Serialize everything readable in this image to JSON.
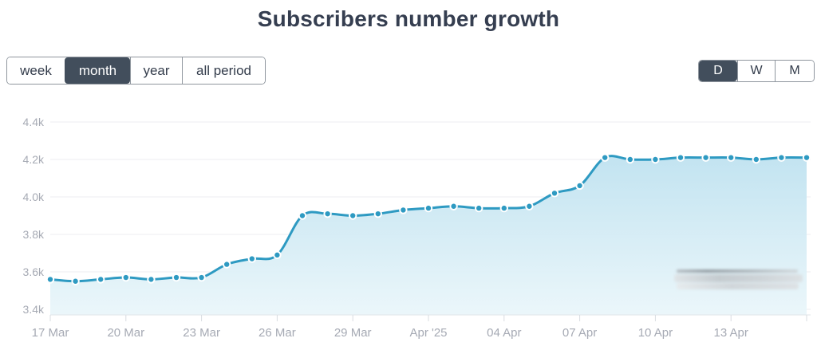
{
  "title": "Subscribers number growth",
  "period_tabs": {
    "items": [
      {
        "label": "week",
        "active": false
      },
      {
        "label": "month",
        "active": true
      },
      {
        "label": "year",
        "active": false
      },
      {
        "label": "all period",
        "active": false
      }
    ]
  },
  "granularity_tabs": {
    "items": [
      {
        "label": "D",
        "active": true
      },
      {
        "label": "W",
        "active": false
      },
      {
        "label": "M",
        "active": false
      }
    ]
  },
  "watermark": {
    "description": "blurred illegible text"
  },
  "colors": {
    "title_text": "#353e50",
    "tab_text": "#333c4b",
    "tab_active_bg": "#424e5c",
    "tab_active_text": "#ffffff",
    "tab_border": "#8f969e",
    "line": "#2e9ac2",
    "dot_fill": "#2e9ac2",
    "dot_ring": "#ffffff",
    "area_top": "#bfe2f0",
    "area_bottom": "#eaf6fa",
    "gridline": "#ededf1",
    "axis_line": "#e2e5e9",
    "tick_mark": "#d8dce1",
    "axis_label": "#a6aab4"
  },
  "chart_data": {
    "type": "area",
    "title": "Subscribers number growth",
    "x": [
      "17 Mar",
      "18 Mar",
      "19 Mar",
      "20 Mar",
      "21 Mar",
      "22 Mar",
      "23 Mar",
      "24 Mar",
      "25 Mar",
      "26 Mar",
      "27 Mar",
      "28 Mar",
      "29 Mar",
      "30 Mar",
      "31 Mar",
      "01 Apr",
      "02 Apr",
      "03 Apr",
      "04 Apr",
      "05 Apr",
      "06 Apr",
      "07 Apr",
      "08 Apr",
      "09 Apr",
      "10 Apr",
      "11 Apr",
      "12 Apr",
      "13 Apr",
      "14 Apr",
      "15 Apr",
      "16 Apr"
    ],
    "values": [
      3.56,
      3.55,
      3.56,
      3.57,
      3.56,
      3.57,
      3.57,
      3.64,
      3.67,
      3.69,
      3.9,
      3.91,
      3.9,
      3.91,
      3.93,
      3.94,
      3.95,
      3.94,
      3.94,
      3.95,
      4.02,
      4.06,
      4.21,
      4.2,
      4.2,
      4.21,
      4.21,
      4.21,
      4.2,
      4.21,
      4.21
    ],
    "unit": "k",
    "xlabel": "",
    "ylabel": "",
    "y_ticks": [
      4.4,
      4.2,
      4.0,
      3.8,
      3.6,
      3.4
    ],
    "y_tick_labels": [
      "4.4k",
      "4.2k",
      "4.0k",
      "3.8k",
      "3.6k",
      "3.4k"
    ],
    "x_tick_labels": [
      "17 Mar",
      "20 Mar",
      "23 Mar",
      "26 Mar",
      "29 Mar",
      "Apr '25",
      "04 Apr",
      "07 Apr",
      "10 Apr",
      "13 Apr"
    ],
    "x_tick_every": 3,
    "ylim": [
      3.4,
      4.45
    ],
    "grid": "horizontal",
    "legend": "none",
    "markers": true
  }
}
